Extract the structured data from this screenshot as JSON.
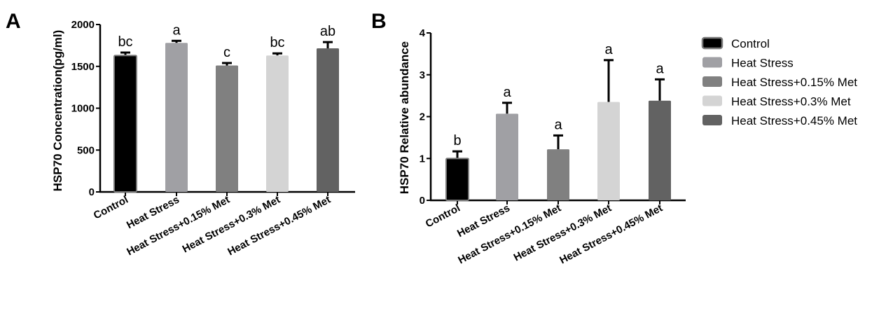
{
  "colors": {
    "Control": "#000000",
    "Heat Stress": "#a0a0a4",
    "Heat Stress+0.15% Met": "#808080",
    "Heat Stress+0.3% Met": "#d4d4d4",
    "Heat Stress+0.45% Met": "#626262",
    "bar_border": "#7a7a7a",
    "axis": "#000000"
  },
  "legend": {
    "items": [
      "Control",
      "Heat Stress",
      "Heat Stress+0.15% Met",
      "Heat Stress+0.3% Met",
      "Heat Stress+0.45% Met"
    ]
  },
  "chart_data": [
    {
      "panel": "A",
      "type": "bar",
      "title": "",
      "xlabel": "",
      "ylabel": "HSP70 Concentration(pg/ml)",
      "ylim": [
        0,
        2000
      ],
      "yticks": [
        0,
        500,
        1000,
        1500,
        2000
      ],
      "ytick_labels": [
        "0",
        "500",
        "1000",
        "1500",
        "2000"
      ],
      "grid": false,
      "categories": [
        "Control",
        "Heat Stress",
        "Heat Stress+0.15% Met",
        "Heat Stress+0.3% Met",
        "Heat Stress+0.45% Met"
      ],
      "values": [
        1630,
        1780,
        1510,
        1630,
        1715
      ],
      "error_upper": [
        35,
        25,
        30,
        25,
        75
      ],
      "significance": [
        "bc",
        "a",
        "c",
        "bc",
        "ab"
      ]
    },
    {
      "panel": "B",
      "type": "bar",
      "title": "",
      "xlabel": "",
      "ylabel": "HSP70 Relative abundance",
      "ylim": [
        0,
        4
      ],
      "yticks": [
        0,
        1,
        2,
        3,
        4
      ],
      "ytick_labels": [
        "0",
        "1",
        "2",
        "3",
        "4"
      ],
      "grid": false,
      "legend_position": "right",
      "categories": [
        "Control",
        "Heat Stress",
        "Heat Stress+0.15% Met",
        "Heat Stress+0.3% Met",
        "Heat Stress+0.45% Met"
      ],
      "values": [
        1.0,
        2.07,
        1.22,
        2.35,
        2.38
      ],
      "error_upper": [
        0.17,
        0.26,
        0.33,
        1.0,
        0.51
      ],
      "significance": [
        "b",
        "a",
        "a",
        "a",
        "a"
      ]
    }
  ]
}
